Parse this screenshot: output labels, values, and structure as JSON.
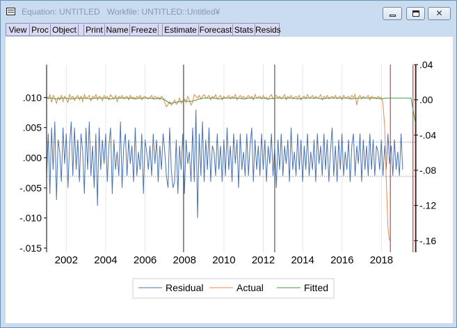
{
  "window": {
    "title": "Equation: UNTITLED   Workfile: UNTITLED::Untitled¥",
    "close_glyph": "✕"
  },
  "toolbar": {
    "buttons": [
      "View",
      "Proc",
      "Object",
      "Print",
      "Name",
      "Freeze",
      "Estimate",
      "Forecast",
      "Stats",
      "Resids"
    ]
  },
  "colors": {
    "residual": "#4a72b0",
    "actual": "#e8894a",
    "fitted": "#3f9a3f",
    "vline_dark": "#333333",
    "vline_red": "#b22222"
  },
  "chart_data": {
    "type": "line",
    "x_tick_labels": [
      "2002",
      "2004",
      "2006",
      "2008",
      "2010",
      "2012",
      "2014",
      "2016",
      "2018"
    ],
    "x_range": [
      2001.0,
      2019.75
    ],
    "left_axis": {
      "series": [
        "Residual"
      ],
      "ylim": [
        -0.015,
        0.015
      ],
      "tick_labels": [
        ".010",
        ".005",
        ".000",
        "-.005",
        "-.010",
        "-.015"
      ],
      "tick_values": [
        0.01,
        0.005,
        0.0,
        -0.005,
        -0.01,
        -0.015
      ]
    },
    "right_axis": {
      "series": [
        "Actual",
        "Fitted"
      ],
      "ylim": [
        -0.2,
        0.04
      ],
      "tick_labels": [
        ".04",
        ".00",
        "-.04",
        "-.08",
        "-.12",
        "-.16"
      ],
      "tick_values": [
        0.04,
        0.0,
        -0.04,
        -0.08,
        -0.12,
        -0.16
      ]
    },
    "reference_lines": {
      "residual_band": [
        0.0026,
        -0.0031
      ]
    },
    "event_lines": [
      {
        "x": 2007.95,
        "color": "dark"
      },
      {
        "x": 2012.58,
        "color": "dark"
      },
      {
        "x": 2018.45,
        "color": "red"
      },
      {
        "x": 2019.6,
        "color": "red"
      },
      {
        "x": 2019.72,
        "color": "red"
      }
    ],
    "legend": {
      "placement": "bottom-center",
      "entries": [
        "Residual",
        "Actual",
        "Fitted"
      ]
    },
    "series": [
      {
        "name": "Residual",
        "axis": "left",
        "x_start": 2001.0,
        "x_step": 0.0833,
        "values": [
          -0.003,
          0.004,
          -0.006,
          0.005,
          -0.002,
          0.006,
          -0.007,
          0.003,
          0.001,
          -0.004,
          0.005,
          -0.001,
          0.004,
          -0.005,
          0.002,
          0.006,
          -0.003,
          0.005,
          -0.002,
          0.003,
          -0.004,
          0.004,
          0.001,
          -0.006,
          0.005,
          -0.002,
          0.006,
          -0.003,
          0.002,
          -0.005,
          0.004,
          -0.008,
          0.005,
          -0.002,
          0.003,
          -0.001,
          0.004,
          -0.004,
          0.002,
          0.005,
          -0.006,
          0.003,
          -0.002,
          0.001,
          -0.003,
          0.006,
          -0.005,
          0.002,
          0.004,
          -0.003,
          0.003,
          -0.001,
          0.002,
          -0.004,
          0.005,
          -0.003,
          0.001,
          -0.002,
          0.004,
          -0.006,
          0.003,
          0.001,
          -0.002,
          0.002,
          -0.003,
          0.004,
          -0.001,
          0.003,
          -0.004,
          0.002,
          -0.002,
          0.004,
          0.001,
          -0.003,
          -0.005,
          0.005,
          -0.002,
          -0.005,
          -0.004,
          0.003,
          -0.006,
          0.002,
          -0.002,
          0.004,
          -0.006,
          0.003,
          -0.001,
          0.001,
          -0.004,
          0.005,
          -0.004,
          0.008,
          -0.01,
          0.004,
          -0.003,
          0.006,
          -0.004,
          0.003,
          -0.002,
          0.005,
          -0.004,
          0.002,
          0.001,
          -0.003,
          0.004,
          -0.002,
          0.002,
          -0.004,
          0.003,
          -0.003,
          0.005,
          -0.002,
          0.002,
          -0.004,
          0.004,
          -0.001,
          0.003,
          -0.005,
          0.004,
          -0.002,
          0.001,
          -0.003,
          0.004,
          -0.003,
          0.002,
          0.005,
          -0.004,
          0.003,
          -0.002,
          0.002,
          -0.003,
          0.004,
          -0.002,
          0.003,
          -0.004,
          0.002,
          -0.001,
          0.004,
          -0.003,
          0.002,
          -0.005,
          0.003,
          -0.002,
          0.004,
          -0.003,
          0.002,
          -0.001,
          0.003,
          -0.004,
          0.005,
          -0.002,
          0.001,
          -0.003,
          0.004,
          -0.002,
          0.003,
          -0.004,
          0.002,
          -0.002,
          0.004,
          -0.003,
          0.001,
          -0.002,
          0.003,
          -0.004,
          0.004,
          -0.001,
          0.002,
          -0.003,
          0.004,
          -0.002,
          0.003,
          -0.004,
          0.001,
          0.005,
          -0.003,
          0.002,
          -0.004,
          0.003,
          -0.002,
          0.004,
          -0.003,
          0.001,
          -0.002,
          0.003,
          -0.004,
          0.002,
          0.004,
          -0.003,
          0.002,
          -0.001,
          0.004,
          -0.004,
          0.003,
          -0.002,
          0.002,
          -0.003,
          0.004,
          -0.002,
          0.003,
          -0.003,
          0.002,
          0.001,
          -0.002,
          0.003,
          -0.003,
          0.002,
          -0.002,
          0.004,
          -0.001,
          0.002,
          -0.003,
          0.003,
          -0.002,
          0.001,
          -0.003,
          0.004,
          -0.002
        ]
      },
      {
        "name": "Actual",
        "axis": "right",
        "x_start": 2001.0,
        "x_step": 0.0833,
        "values": [
          0.004,
          0.001,
          0.006,
          -0.003,
          0.005,
          0.002,
          -0.004,
          0.003,
          0.0,
          0.005,
          -0.002,
          0.004,
          0.001,
          -0.003,
          0.006,
          0.002,
          0.004,
          -0.001,
          0.003,
          0.005,
          0.0,
          0.004,
          -0.002,
          0.006,
          0.001,
          0.003,
          0.005,
          -0.001,
          0.004,
          0.002,
          0.006,
          0.0,
          0.004,
          0.003,
          -0.001,
          0.005,
          0.002,
          0.004,
          0.0,
          0.006,
          0.003,
          0.001,
          0.005,
          -0.002,
          0.004,
          0.002,
          0.005,
          0.001,
          0.003,
          0.004,
          0.0,
          0.005,
          0.002,
          0.003,
          0.001,
          0.004,
          0.002,
          0.005,
          0.0,
          0.003,
          0.004,
          0.002,
          0.001,
          0.003,
          0.005,
          0.001,
          0.004,
          0.002,
          0.003,
          0.0,
          0.004,
          0.002,
          -0.003,
          -0.008,
          -0.005,
          -0.002,
          -0.006,
          -0.004,
          0.0,
          -0.005,
          -0.003,
          0.002,
          -0.004,
          -0.002,
          0.001,
          -0.003,
          0.004,
          0.0,
          -0.006,
          -0.002,
          0.006,
          0.004,
          0.002,
          0.005,
          0.001,
          0.004,
          0.006,
          0.002,
          0.003,
          0.005,
          0.0,
          0.004,
          0.002,
          0.006,
          0.001,
          0.003,
          0.005,
          0.0,
          0.004,
          0.002,
          0.003,
          0.005,
          0.001,
          0.004,
          0.002,
          0.006,
          0.0,
          0.003,
          0.005,
          0.002,
          0.004,
          0.001,
          0.003,
          0.005,
          0.002,
          0.004,
          0.0,
          0.006,
          0.002,
          0.003,
          0.004,
          0.001,
          0.005,
          0.002,
          0.003,
          0.0,
          0.004,
          0.006,
          0.001,
          0.003,
          0.005,
          0.002,
          0.004,
          0.001,
          0.003,
          0.006,
          0.0,
          0.004,
          0.002,
          0.005,
          0.001,
          0.003,
          0.004,
          0.002,
          0.005,
          0.0,
          0.003,
          0.004,
          0.001,
          0.006,
          0.002,
          0.003,
          0.005,
          0.001,
          0.004,
          0.002,
          0.003,
          0.006,
          0.0,
          0.004,
          0.002,
          0.005,
          0.001,
          0.003,
          0.004,
          0.002,
          0.005,
          0.001,
          0.003,
          0.004,
          0.0,
          0.005,
          0.002,
          0.003,
          0.004,
          0.001,
          0.005,
          0.002,
          0.006,
          -0.006,
          0.003,
          0.005,
          0.001,
          0.004,
          0.002,
          0.003,
          0.005,
          0.0,
          0.004,
          0.002,
          0.003,
          0.001,
          0.004,
          0.002,
          0.003,
          -0.004,
          -0.03,
          -0.09,
          -0.145,
          -0.16
        ]
      },
      {
        "name": "Fitted",
        "axis": "right",
        "x_start": 2001.0,
        "x_step": 0.25,
        "values": [
          0.002,
          0.002,
          0.001,
          0.002,
          0.002,
          0.001,
          0.002,
          0.002,
          0.002,
          0.001,
          0.002,
          0.002,
          0.002,
          0.001,
          0.002,
          0.002,
          0.002,
          0.002,
          0.001,
          0.002,
          0.002,
          0.002,
          0.001,
          0.002,
          0.0,
          -0.004,
          -0.003,
          -0.002,
          -0.001,
          -0.002,
          -0.001,
          0.001,
          0.002,
          0.002,
          0.002,
          0.001,
          0.002,
          0.002,
          0.002,
          0.002,
          0.001,
          0.002,
          0.002,
          0.002,
          0.002,
          0.001,
          0.002,
          0.002,
          0.002,
          0.002,
          0.002,
          0.001,
          0.002,
          0.002,
          0.002,
          0.002,
          0.001,
          0.002,
          0.002,
          0.002,
          0.002,
          0.002,
          0.001,
          0.002,
          0.002,
          0.002,
          0.002,
          0.002,
          0.001,
          0.002,
          0.002,
          0.002,
          0.002,
          0.002,
          0.002,
          -0.03,
          -0.08
        ]
      }
    ]
  }
}
